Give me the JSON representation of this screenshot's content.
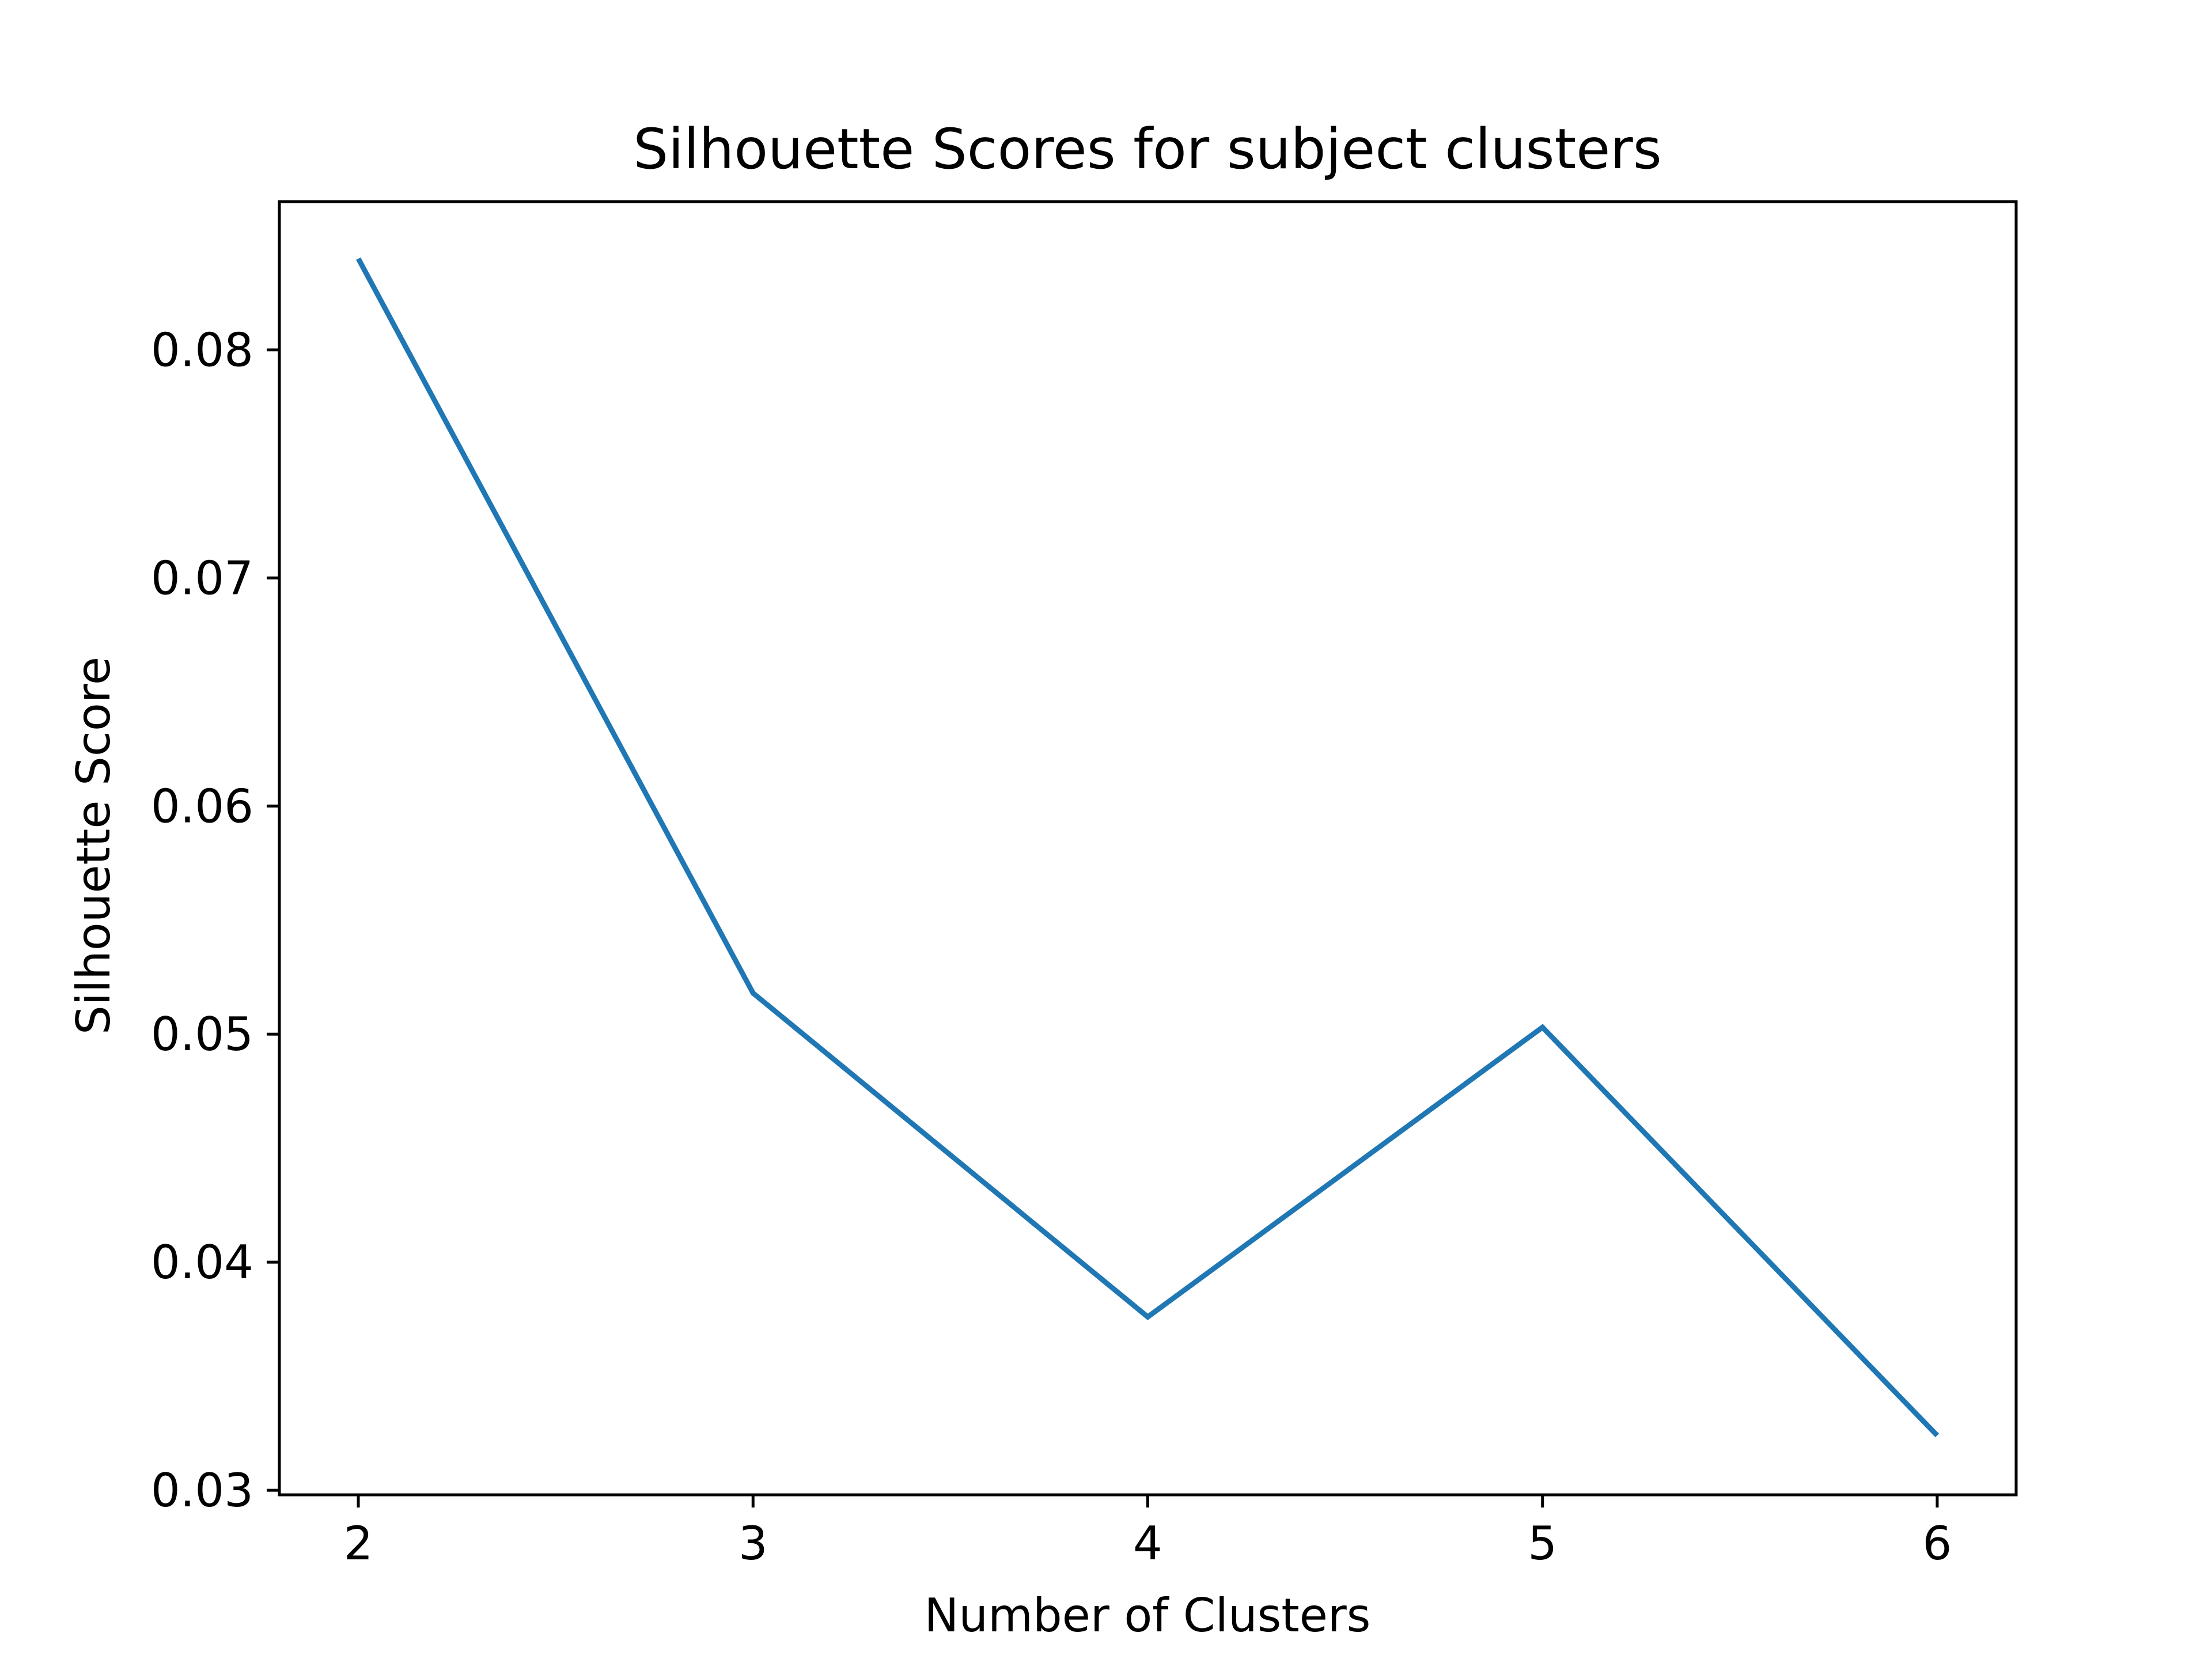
{
  "chart_data": {
    "type": "line",
    "title": "Silhouette Scores for subject clusters",
    "xlabel": "Number of Clusters",
    "ylabel": "Silhouette Score",
    "x": [
      2,
      3,
      4,
      5,
      6
    ],
    "series": [
      {
        "values": [
          0.084,
          0.0518,
          0.0376,
          0.0503,
          0.0324
        ],
        "color": "#1f77b4"
      }
    ],
    "xlim": [
      1.8,
      6.2
    ],
    "ylim": [
      0.0298,
      0.0865
    ],
    "x_ticks": [
      2,
      3,
      4,
      5,
      6
    ],
    "x_tick_labels": [
      "2",
      "3",
      "4",
      "5",
      "6"
    ],
    "y_ticks": [
      0.03,
      0.04,
      0.05,
      0.06,
      0.07,
      0.08
    ],
    "y_tick_labels": [
      "0.03",
      "0.04",
      "0.05",
      "0.06",
      "0.07",
      "0.08"
    ],
    "grid": false,
    "legend": "none"
  }
}
